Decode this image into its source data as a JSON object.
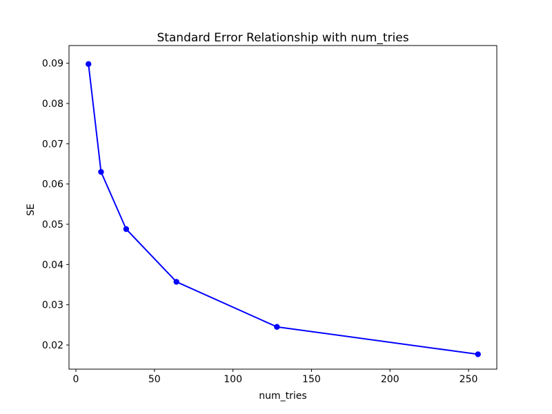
{
  "chart_data": {
    "type": "line",
    "title": "Standard Error Relationship with num_tries",
    "xlabel": "num_tries",
    "ylabel": "SE",
    "series": [
      {
        "name": "SE",
        "x": [
          8,
          16,
          32,
          64,
          128,
          256
        ],
        "y": [
          0.0898,
          0.063,
          0.0488,
          0.0357,
          0.0245,
          0.0177
        ]
      }
    ],
    "xlim": [
      -4.4,
      268
    ],
    "ylim": [
      0.014,
      0.0944
    ],
    "xticks": [
      0,
      50,
      100,
      150,
      200,
      250
    ],
    "yticks": [
      0.02,
      0.03,
      0.04,
      0.05,
      0.06,
      0.07,
      0.08,
      0.09
    ],
    "ytick_labels": [
      "0.02",
      "0.03",
      "0.04",
      "0.05",
      "0.06",
      "0.07",
      "0.08",
      "0.09"
    ],
    "xtick_labels": [
      "0",
      "50",
      "100",
      "150",
      "200",
      "250"
    ],
    "grid": false,
    "legend": null,
    "line_color": "#0000ff",
    "marker": "circle",
    "axis_color": "#000000",
    "background_color": "#ffffff"
  }
}
